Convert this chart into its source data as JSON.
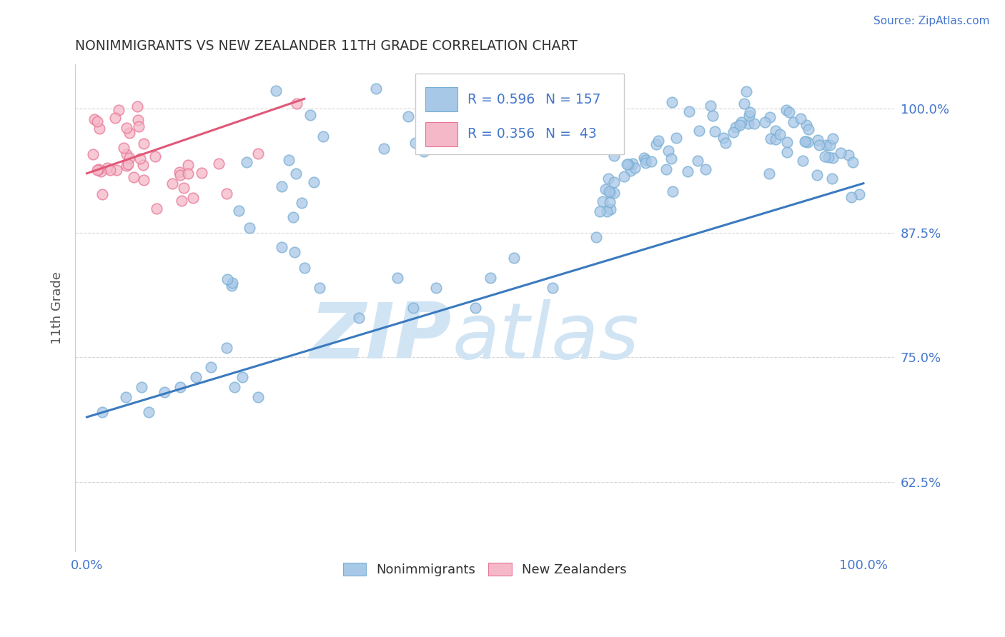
{
  "title": "NONIMMIGRANTS VS NEW ZEALANDER 11TH GRADE CORRELATION CHART",
  "source_text": "Source: ZipAtlas.com",
  "ylabel": "11th Grade",
  "ytick_labels": [
    "100.0%",
    "87.5%",
    "75.0%",
    "62.5%"
  ],
  "ytick_values": [
    1.0,
    0.875,
    0.75,
    0.625
  ],
  "legend_label_blue": "Nonimmigrants",
  "legend_label_pink": "New Zealanders",
  "blue_color": "#a8c8e8",
  "blue_edge_color": "#7aafd4",
  "blue_line_color": "#3a7abf",
  "pink_color": "#f5b8c8",
  "pink_edge_color": "#e87898",
  "pink_line_color": "#e05878",
  "title_color": "#333333",
  "axis_label_color": "#4477cc",
  "r_color": "#4477cc",
  "background_color": "#ffffff",
  "grid_color": "#cccccc",
  "watermark_color": "#d0e4f4"
}
